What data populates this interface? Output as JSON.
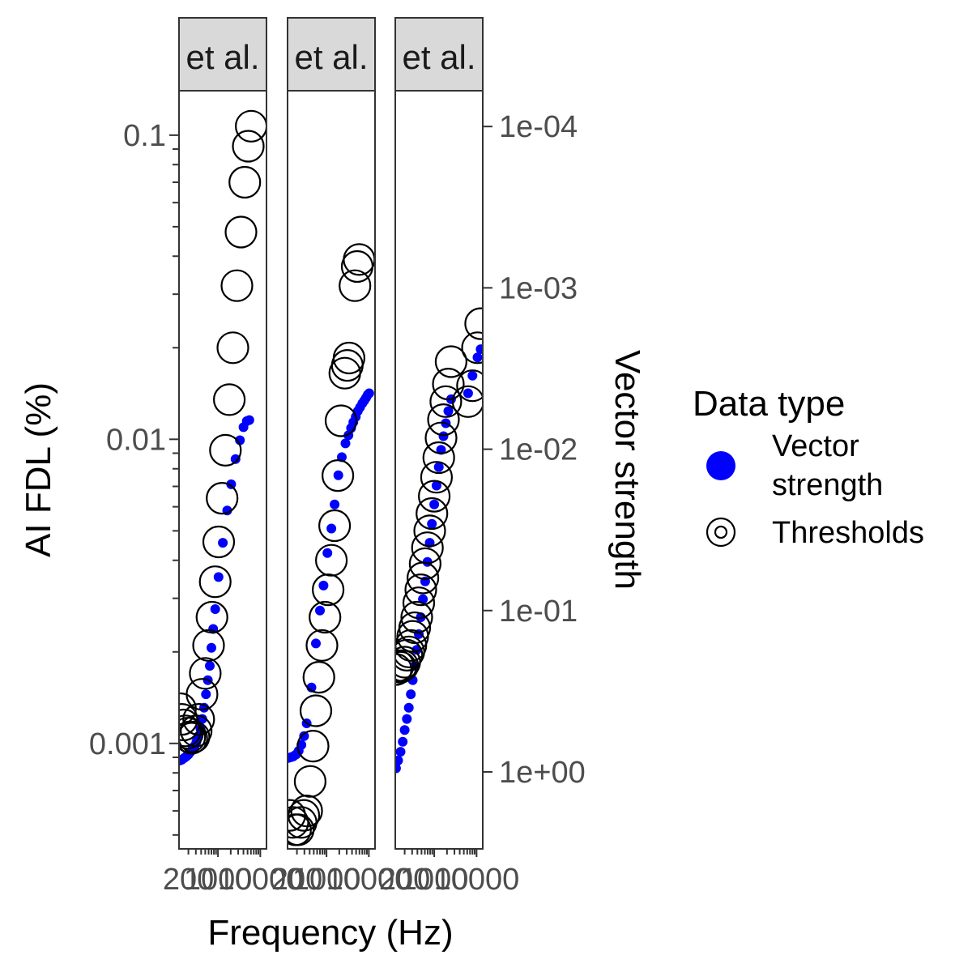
{
  "chart_data": {
    "type": "scatter",
    "xlabel": "Frequency (Hz)",
    "ylabel": "AI FDL (%)",
    "y2label": "Vector strength",
    "x_scale": "log",
    "y_scale": "log",
    "y2_scale": "log-reversed",
    "ylim": [
      0.00045,
      0.14
    ],
    "y2lim": [
      3.0,
      6e-05
    ],
    "xlim": [
      120,
      14000
    ],
    "y_ticks": [
      {
        "value": 0.1,
        "label": "0.1"
      },
      {
        "value": 0.01,
        "label": "0.01"
      },
      {
        "value": 0.001,
        "label": "0.001"
      }
    ],
    "y2_ticks": [
      {
        "value": 0.0001,
        "label": "1e-04"
      },
      {
        "value": 0.001,
        "label": "1e-03"
      },
      {
        "value": 0.01,
        "label": "1e-02"
      },
      {
        "value": 0.1,
        "label": "1e-01"
      },
      {
        "value": 1,
        "label": "1e+00"
      }
    ],
    "x_ticks": [
      {
        "value": 200,
        "label": "200"
      },
      {
        "value": 1000,
        "label": "1000"
      },
      {
        "value": 10000,
        "label": "10000"
      }
    ],
    "legend": {
      "title": "Data type",
      "position": "right",
      "entries": [
        {
          "label_line1": "Vector",
          "label_line2": "strength",
          "shape": "filled-circle",
          "color": "#0000ff"
        },
        {
          "label_line1": "Thresholds",
          "label_line2": "",
          "shape": "open-circle",
          "color": "#000000"
        }
      ]
    },
    "colors": {
      "vector_strength": "#0000ff",
      "thresholds": "#000000",
      "strip_bg": "#d9d9d9",
      "panel_border": "#333333"
    },
    "panels": [
      {
        "strip": "et al.",
        "xlim": [
          120,
          14000
        ],
        "thresholds": [
          {
            "x": 130,
            "y": 0.0013
          },
          {
            "x": 140,
            "y": 0.0012
          },
          {
            "x": 155,
            "y": 0.00115
          },
          {
            "x": 170,
            "y": 0.0011
          },
          {
            "x": 190,
            "y": 0.00108
          },
          {
            "x": 215,
            "y": 0.00105
          },
          {
            "x": 240,
            "y": 0.00104
          },
          {
            "x": 270,
            "y": 0.00105
          },
          {
            "x": 305,
            "y": 0.0011
          },
          {
            "x": 350,
            "y": 0.0012
          },
          {
            "x": 420,
            "y": 0.00145
          },
          {
            "x": 500,
            "y": 0.0017
          },
          {
            "x": 600,
            "y": 0.0021
          },
          {
            "x": 720,
            "y": 0.0026
          },
          {
            "x": 860,
            "y": 0.0034
          },
          {
            "x": 1040,
            "y": 0.0046
          },
          {
            "x": 1250,
            "y": 0.0064
          },
          {
            "x": 1500,
            "y": 0.0092
          },
          {
            "x": 1850,
            "y": 0.0135
          },
          {
            "x": 2250,
            "y": 0.02
          },
          {
            "x": 2800,
            "y": 0.032
          },
          {
            "x": 3500,
            "y": 0.048
          },
          {
            "x": 4300,
            "y": 0.07
          },
          {
            "x": 5200,
            "y": 0.092
          },
          {
            "x": 6100,
            "y": 0.107
          }
        ],
        "vector_strength": [
          {
            "x": 125,
            "y": 0.85
          },
          {
            "x": 140,
            "y": 0.84
          },
          {
            "x": 160,
            "y": 0.82
          },
          {
            "x": 180,
            "y": 0.8
          },
          {
            "x": 200,
            "y": 0.78
          },
          {
            "x": 225,
            "y": 0.75
          },
          {
            "x": 250,
            "y": 0.72
          },
          {
            "x": 280,
            "y": 0.69
          },
          {
            "x": 310,
            "y": 0.65
          },
          {
            "x": 345,
            "y": 0.6
          },
          {
            "x": 385,
            "y": 0.54
          },
          {
            "x": 425,
            "y": 0.47
          },
          {
            "x": 470,
            "y": 0.4
          },
          {
            "x": 520,
            "y": 0.33
          },
          {
            "x": 575,
            "y": 0.27
          },
          {
            "x": 640,
            "y": 0.22
          },
          {
            "x": 700,
            "y": 0.17
          },
          {
            "x": 770,
            "y": 0.13
          },
          {
            "x": 860,
            "y": 0.098
          },
          {
            "x": 1030,
            "y": 0.062
          },
          {
            "x": 1300,
            "y": 0.038
          },
          {
            "x": 1650,
            "y": 0.024
          },
          {
            "x": 2050,
            "y": 0.0165
          },
          {
            "x": 2600,
            "y": 0.0115
          },
          {
            "x": 3300,
            "y": 0.0088
          },
          {
            "x": 4000,
            "y": 0.0073
          },
          {
            "x": 4800,
            "y": 0.0067
          },
          {
            "x": 5500,
            "y": 0.0066
          }
        ]
      },
      {
        "strip": "et al.",
        "xlim": [
          120,
          14000
        ],
        "thresholds": [
          {
            "x": 135,
            "y": 0.00058
          },
          {
            "x": 160,
            "y": 0.00055
          },
          {
            "x": 185,
            "y": 0.00052
          },
          {
            "x": 215,
            "y": 0.00052
          },
          {
            "x": 250,
            "y": 0.00055
          },
          {
            "x": 290,
            "y": 0.00058
          },
          {
            "x": 340,
            "y": 0.0006
          },
          {
            "x": 410,
            "y": 0.00075
          },
          {
            "x": 480,
            "y": 0.00098
          },
          {
            "x": 560,
            "y": 0.00128
          },
          {
            "x": 660,
            "y": 0.00165
          },
          {
            "x": 780,
            "y": 0.0021
          },
          {
            "x": 920,
            "y": 0.0026
          },
          {
            "x": 1090,
            "y": 0.0032
          },
          {
            "x": 1300,
            "y": 0.004
          },
          {
            "x": 1550,
            "y": 0.0052
          },
          {
            "x": 1850,
            "y": 0.0076
          },
          {
            "x": 2200,
            "y": 0.0115
          },
          {
            "x": 2700,
            "y": 0.0165
          },
          {
            "x": 3100,
            "y": 0.0175
          },
          {
            "x": 3400,
            "y": 0.0185
          },
          {
            "x": 4700,
            "y": 0.032
          },
          {
            "x": 5300,
            "y": 0.037
          },
          {
            "x": 5900,
            "y": 0.039
          }
        ],
        "vector_strength": [
          {
            "x": 125,
            "y": 0.82
          },
          {
            "x": 145,
            "y": 0.81
          },
          {
            "x": 165,
            "y": 0.8
          },
          {
            "x": 190,
            "y": 0.78
          },
          {
            "x": 220,
            "y": 0.74
          },
          {
            "x": 255,
            "y": 0.68
          },
          {
            "x": 295,
            "y": 0.6
          },
          {
            "x": 340,
            "y": 0.5
          },
          {
            "x": 440,
            "y": 0.3
          },
          {
            "x": 560,
            "y": 0.16
          },
          {
            "x": 700,
            "y": 0.1
          },
          {
            "x": 850,
            "y": 0.07
          },
          {
            "x": 1050,
            "y": 0.044
          },
          {
            "x": 1300,
            "y": 0.031
          },
          {
            "x": 1550,
            "y": 0.022
          },
          {
            "x": 1900,
            "y": 0.0145
          },
          {
            "x": 2300,
            "y": 0.0112
          },
          {
            "x": 2800,
            "y": 0.0092
          },
          {
            "x": 3300,
            "y": 0.0082
          },
          {
            "x": 3800,
            "y": 0.0074
          },
          {
            "x": 4300,
            "y": 0.0068
          },
          {
            "x": 4900,
            "y": 0.0063
          },
          {
            "x": 5500,
            "y": 0.0058
          },
          {
            "x": 6200,
            "y": 0.0055
          },
          {
            "x": 7000,
            "y": 0.0052
          },
          {
            "x": 7800,
            "y": 0.005
          },
          {
            "x": 8600,
            "y": 0.0048
          },
          {
            "x": 9400,
            "y": 0.0046
          },
          {
            "x": 10200,
            "y": 0.0045
          }
        ]
      },
      {
        "strip": "et al.",
        "xlim": [
          120,
          14000
        ],
        "thresholds": [
          {
            "x": 125,
            "y": 0.00175
          },
          {
            "x": 140,
            "y": 0.0018
          },
          {
            "x": 160,
            "y": 0.00178
          },
          {
            "x": 180,
            "y": 0.0018
          },
          {
            "x": 200,
            "y": 0.00185
          },
          {
            "x": 225,
            "y": 0.00195
          },
          {
            "x": 250,
            "y": 0.002
          },
          {
            "x": 280,
            "y": 0.0021
          },
          {
            "x": 310,
            "y": 0.00225
          },
          {
            "x": 345,
            "y": 0.0024
          },
          {
            "x": 385,
            "y": 0.0026
          },
          {
            "x": 430,
            "y": 0.0029
          },
          {
            "x": 480,
            "y": 0.0032
          },
          {
            "x": 540,
            "y": 0.0035
          },
          {
            "x": 610,
            "y": 0.0039
          },
          {
            "x": 690,
            "y": 0.0044
          },
          {
            "x": 780,
            "y": 0.005
          },
          {
            "x": 880,
            "y": 0.0057
          },
          {
            "x": 1000,
            "y": 0.0065
          },
          {
            "x": 1130,
            "y": 0.0075
          },
          {
            "x": 1280,
            "y": 0.0087
          },
          {
            "x": 1450,
            "y": 0.0101
          },
          {
            "x": 1650,
            "y": 0.0116
          },
          {
            "x": 1880,
            "y": 0.0133
          },
          {
            "x": 2150,
            "y": 0.0152
          },
          {
            "x": 2500,
            "y": 0.018
          },
          {
            "x": 6300,
            "y": 0.0133
          },
          {
            "x": 8000,
            "y": 0.015
          },
          {
            "x": 10500,
            "y": 0.02
          },
          {
            "x": 12500,
            "y": 0.024
          }
        ],
        "vector_strength": [
          {
            "x": 125,
            "y": 0.95
          },
          {
            "x": 140,
            "y": 0.85
          },
          {
            "x": 160,
            "y": 0.75
          },
          {
            "x": 180,
            "y": 0.65
          },
          {
            "x": 200,
            "y": 0.55
          },
          {
            "x": 225,
            "y": 0.47
          },
          {
            "x": 250,
            "y": 0.4
          },
          {
            "x": 280,
            "y": 0.33
          },
          {
            "x": 310,
            "y": 0.27
          },
          {
            "x": 345,
            "y": 0.22
          },
          {
            "x": 385,
            "y": 0.175
          },
          {
            "x": 430,
            "y": 0.14
          },
          {
            "x": 480,
            "y": 0.11
          },
          {
            "x": 540,
            "y": 0.085
          },
          {
            "x": 610,
            "y": 0.066
          },
          {
            "x": 690,
            "y": 0.05
          },
          {
            "x": 780,
            "y": 0.038
          },
          {
            "x": 880,
            "y": 0.029
          },
          {
            "x": 1000,
            "y": 0.022
          },
          {
            "x": 1130,
            "y": 0.0168
          },
          {
            "x": 1280,
            "y": 0.0129
          },
          {
            "x": 1450,
            "y": 0.0101
          },
          {
            "x": 1650,
            "y": 0.0083
          },
          {
            "x": 1880,
            "y": 0.0069
          },
          {
            "x": 2150,
            "y": 0.0058
          },
          {
            "x": 2500,
            "y": 0.0049
          },
          {
            "x": 6300,
            "y": 0.0045
          },
          {
            "x": 8000,
            "y": 0.0035
          },
          {
            "x": 10500,
            "y": 0.0027
          },
          {
            "x": 12500,
            "y": 0.0024
          }
        ]
      }
    ]
  }
}
